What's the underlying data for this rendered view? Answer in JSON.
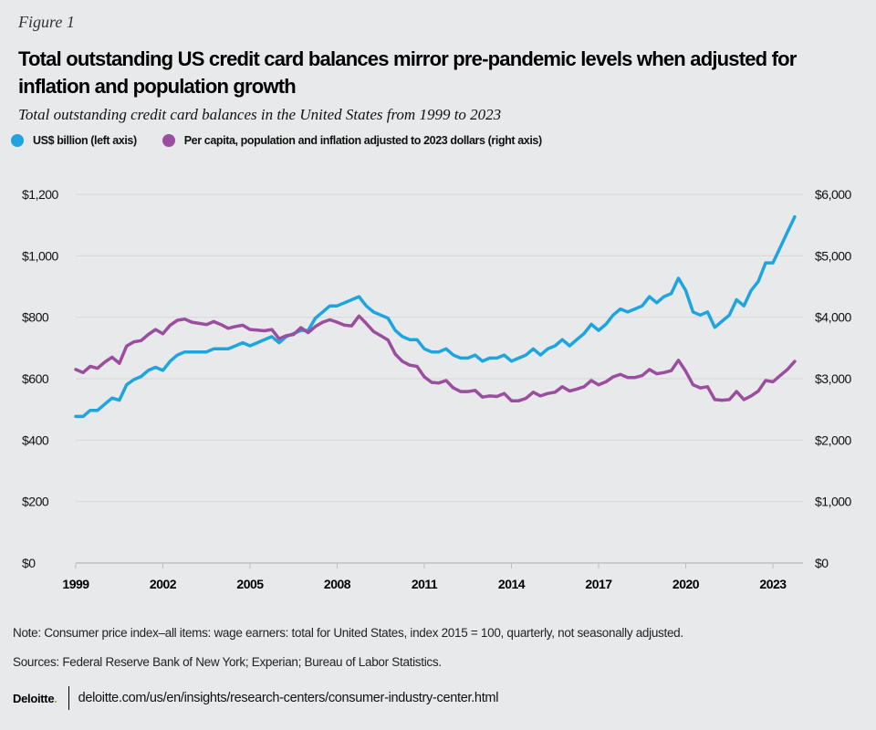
{
  "figure_label": "Figure 1",
  "title": "Total outstanding US credit card balances mirror pre-pandemic levels when adjusted for inflation and population growth",
  "subtitle": "Total outstanding credit card balances in the United States from 1999 to 2023",
  "note": "Note: Consumer price index–all items: wage earners: total for United States, index 2015 = 100, quarterly, not seasonally adjusted.",
  "sources": "Sources: Federal Reserve Bank of New York; Experian; Bureau of Labor Statistics.",
  "footer": {
    "logo": "Deloitte",
    "logo_dot": ".",
    "url": "deloitte.com/us/en/insights/research-centers/consumer-industry-center.html"
  },
  "chart_data": {
    "type": "line",
    "title": "Total outstanding US credit card balances mirror pre-pandemic levels when adjusted for inflation and population growth",
    "subtitle": "Total outstanding credit card balances in the United States from 1999 to 2023",
    "x_start": 1999,
    "x_end": 2023.75,
    "x_step": 0.25,
    "x_ticks": [
      1999,
      2002,
      2005,
      2008,
      2011,
      2014,
      2017,
      2020,
      2023
    ],
    "x_tick_labels": [
      "1999",
      "2002",
      "2005",
      "2008",
      "2011",
      "2014",
      "2017",
      "2020",
      "2023"
    ],
    "y_left": {
      "label": "US$ billion",
      "range": [
        0,
        1200
      ],
      "ticks": [
        0,
        200,
        400,
        600,
        800,
        1000,
        1200
      ],
      "tick_labels": [
        "$0",
        "$200",
        "$400",
        "$600",
        "$800",
        "$1,000",
        "$1,200"
      ]
    },
    "y_right": {
      "label": "Per capita, 2023 dollars",
      "range": [
        0,
        6000
      ],
      "ticks": [
        0,
        1000,
        2000,
        3000,
        4000,
        5000,
        6000
      ],
      "tick_labels": [
        "$0",
        "$1,000",
        "$2,000",
        "$3,000",
        "$4,000",
        "$5,000",
        "$6,000"
      ]
    },
    "grid": true,
    "legend_position": "top-left",
    "series": [
      {
        "name": "US$ billion (left axis)",
        "axis": "left",
        "color": "#1ea5e0",
        "values": [
          477,
          477,
          497,
          497,
          517,
          537,
          530,
          580,
          597,
          607,
          627,
          637,
          627,
          657,
          677,
          687,
          687,
          687,
          687,
          697,
          697,
          697,
          707,
          717,
          707,
          717,
          727,
          737,
          717,
          737,
          747,
          757,
          757,
          797,
          817,
          837,
          837,
          847,
          857,
          867,
          837,
          817,
          807,
          797,
          757,
          737,
          727,
          727,
          697,
          687,
          687,
          697,
          677,
          667,
          667,
          677,
          657,
          667,
          667,
          677,
          657,
          667,
          677,
          697,
          677,
          697,
          707,
          727,
          707,
          727,
          747,
          777,
          757,
          777,
          807,
          827,
          817,
          827,
          837,
          867,
          847,
          867,
          877,
          927,
          887,
          817,
          807,
          817,
          767,
          787,
          807,
          857,
          837,
          887,
          917,
          977,
          977,
          1027,
          1077,
          1127
        ]
      },
      {
        "name": "Per capita, population and inflation adjusted to 2023 dollars (right axis)",
        "axis": "right",
        "color": "#9b4d9f",
        "values": [
          3150,
          3100,
          3200,
          3170,
          3270,
          3350,
          3250,
          3530,
          3600,
          3620,
          3720,
          3800,
          3730,
          3870,
          3950,
          3970,
          3920,
          3900,
          3880,
          3930,
          3880,
          3820,
          3850,
          3870,
          3800,
          3790,
          3780,
          3800,
          3650,
          3700,
          3720,
          3830,
          3750,
          3850,
          3920,
          3960,
          3920,
          3870,
          3860,
          4020,
          3900,
          3770,
          3700,
          3630,
          3400,
          3280,
          3220,
          3200,
          3030,
          2940,
          2930,
          2970,
          2850,
          2790,
          2790,
          2810,
          2700,
          2720,
          2710,
          2760,
          2640,
          2640,
          2680,
          2780,
          2720,
          2760,
          2780,
          2870,
          2800,
          2830,
          2870,
          2970,
          2900,
          2950,
          3030,
          3070,
          3020,
          3020,
          3050,
          3150,
          3080,
          3100,
          3130,
          3300,
          3120,
          2900,
          2850,
          2870,
          2660,
          2650,
          2660,
          2790,
          2660,
          2720,
          2800,
          2970,
          2950,
          3050,
          3150,
          3280
        ]
      }
    ]
  }
}
